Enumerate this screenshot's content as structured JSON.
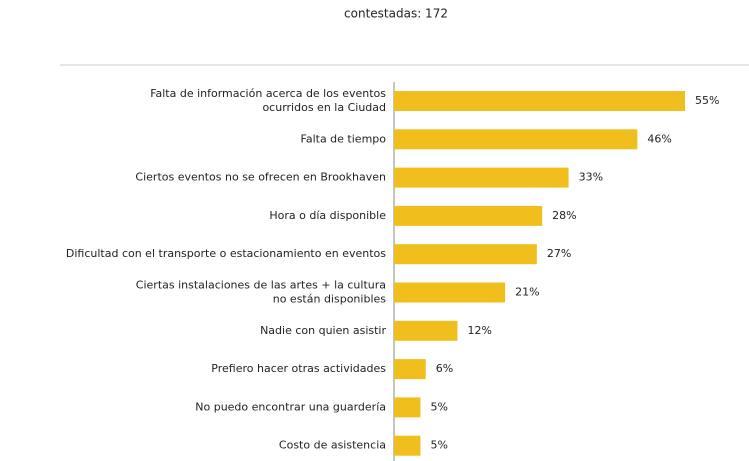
{
  "chart_data": {
    "type": "bar",
    "orientation": "horizontal",
    "subtitle": "contestadas: 172",
    "categories": [
      "Falta de información acerca de los eventos\nocurridos en la Ciudad",
      "Falta de tiempo",
      "Ciertos eventos no se ofrecen en Brookhaven",
      "Hora o día disponible",
      "Dificultad con el transporte o estacionamiento en eventos",
      "Ciertas instalaciones de las artes + la cultura\nno están disponibles",
      "Nadie con quien asistir",
      "Prefiero hacer otras actividades",
      "No puedo encontrar una guardería",
      "Costo de asistencia"
    ],
    "values": [
      55,
      46,
      33,
      28,
      27,
      21,
      12,
      6,
      5,
      5
    ],
    "value_labels": [
      "55%",
      "46%",
      "33%",
      "28%",
      "27%",
      "21%",
      "12%",
      "6%",
      "5%",
      "5%"
    ],
    "color": "#f0bf1d"
  }
}
